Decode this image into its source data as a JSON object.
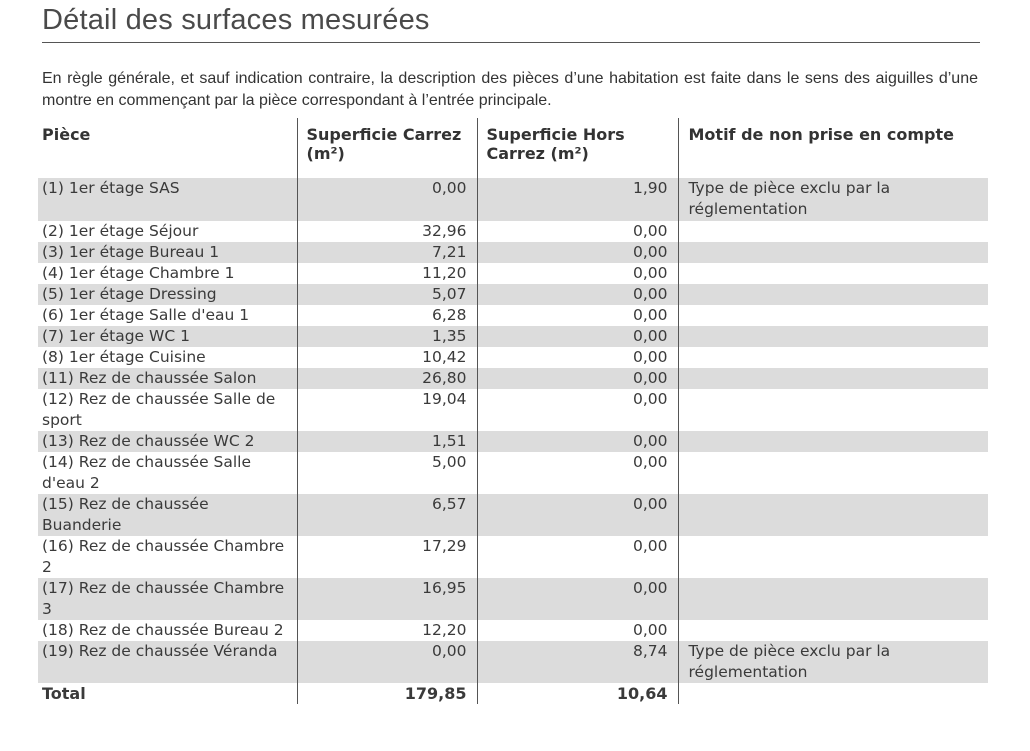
{
  "title": "Détail des surfaces mesurées",
  "intro": "En règle générale, et sauf indication contraire, la description des pièces d’une habitation est faite dans le sens des aiguilles d’une montre en commençant par la pièce correspondant à l’entrée principale.",
  "table": {
    "headers": {
      "piece": "Pièce",
      "carrez": "Superficie Carrez (m²)",
      "hors_carrez": "Superficie Hors Carrez (m²)",
      "motif": "Motif de non prise en compte"
    },
    "rows": [
      {
        "piece": "(1) 1er étage SAS",
        "carrez": "0,00",
        "hors": "1,90",
        "motif": "Type de pièce exclu par la réglementation"
      },
      {
        "piece": "(2) 1er étage Séjour",
        "carrez": "32,96",
        "hors": "0,00",
        "motif": ""
      },
      {
        "piece": "(3) 1er étage Bureau 1",
        "carrez": "7,21",
        "hors": "0,00",
        "motif": ""
      },
      {
        "piece": "(4) 1er étage Chambre 1",
        "carrez": "11,20",
        "hors": "0,00",
        "motif": ""
      },
      {
        "piece": "(5) 1er étage Dressing",
        "carrez": "5,07",
        "hors": "0,00",
        "motif": ""
      },
      {
        "piece": "(6) 1er étage Salle d'eau 1",
        "carrez": "6,28",
        "hors": "0,00",
        "motif": ""
      },
      {
        "piece": "(7) 1er étage WC 1",
        "carrez": "1,35",
        "hors": "0,00",
        "motif": ""
      },
      {
        "piece": "(8) 1er étage Cuisine",
        "carrez": "10,42",
        "hors": "0,00",
        "motif": ""
      },
      {
        "piece": "(11) Rez de chaussée Salon",
        "carrez": "26,80",
        "hors": "0,00",
        "motif": ""
      },
      {
        "piece": "(12) Rez de chaussée Salle de sport",
        "carrez": "19,04",
        "hors": "0,00",
        "motif": ""
      },
      {
        "piece": "(13) Rez de chaussée WC 2",
        "carrez": "1,51",
        "hors": "0,00",
        "motif": ""
      },
      {
        "piece": "(14) Rez de chaussée Salle d'eau 2",
        "carrez": "5,00",
        "hors": "0,00",
        "motif": ""
      },
      {
        "piece": "(15) Rez de chaussée Buanderie",
        "carrez": "6,57",
        "hors": "0,00",
        "motif": ""
      },
      {
        "piece": "(16) Rez de chaussée Chambre 2",
        "carrez": "17,29",
        "hors": "0,00",
        "motif": ""
      },
      {
        "piece": "(17) Rez de chaussée Chambre 3",
        "carrez": "16,95",
        "hors": "0,00",
        "motif": ""
      },
      {
        "piece": "(18) Rez de chaussée Bureau 2",
        "carrez": "12,20",
        "hors": "0,00",
        "motif": ""
      },
      {
        "piece": "(19) Rez de chaussée Véranda",
        "carrez": "0,00",
        "hors": "8,74",
        "motif": "Type de pièce exclu par la réglementation"
      }
    ],
    "total": {
      "label": "Total",
      "carrez": "179,85",
      "hors": "10,64"
    }
  }
}
